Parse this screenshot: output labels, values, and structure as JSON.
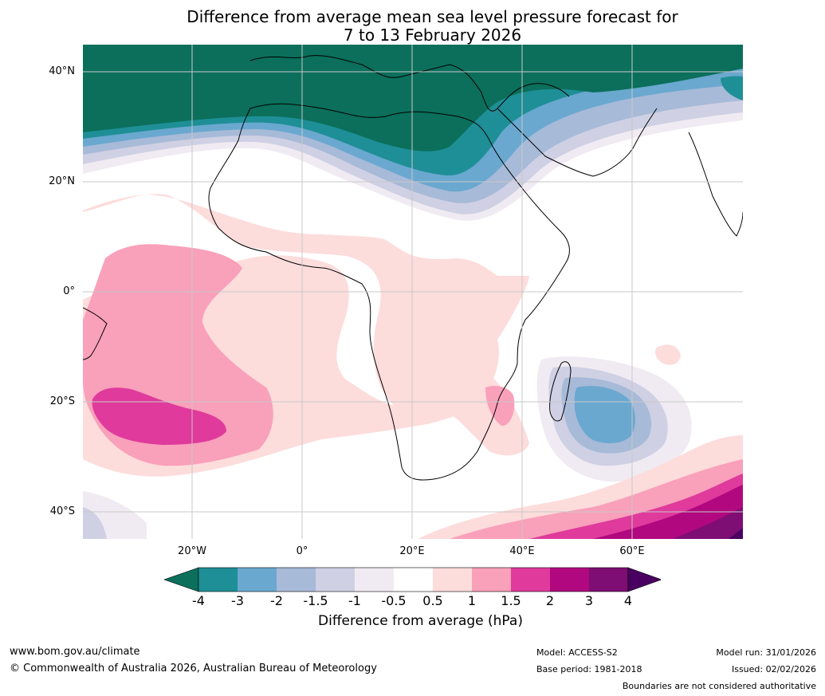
{
  "title": {
    "line1": "Difference from average mean sea level pressure forecast for",
    "line2": "7 to 13 February 2026"
  },
  "axes": {
    "lat_labels": [
      "40°N",
      "20°N",
      "0°",
      "20°S",
      "40°S"
    ],
    "lon_labels": [
      "20°W",
      "0°",
      "20°E",
      "40°E",
      "60°E"
    ]
  },
  "legend": {
    "ticks": [
      "-4",
      "-3",
      "-2",
      "-1.5",
      "-1",
      "-0.5",
      "0.5",
      "1",
      "1.5",
      "2",
      "3",
      "4"
    ],
    "colors": [
      "#0b6f5b",
      "#1e8f96",
      "#6aa8cf",
      "#a7bad8",
      "#cfd0e4",
      "#f0ebf2",
      "#ffffff",
      "#fddcdc",
      "#f9a0ba",
      "#df3a9c",
      "#b1077f",
      "#7e0d74",
      "#4a0060"
    ],
    "label": "Difference from average (hPa)"
  },
  "footer": {
    "website": "www.bom.gov.au/climate",
    "copyright": "© Commonwealth of Australia 2026, Australian Bureau of Meteorology",
    "model": "Model: ACCESS-S2",
    "base_period": "Base period: 1981-2018",
    "model_run": "Model run: 31/01/2026",
    "issued": "Issued: 02/02/2026",
    "disclaimer": "Boundaries are not considered authoritative"
  }
}
